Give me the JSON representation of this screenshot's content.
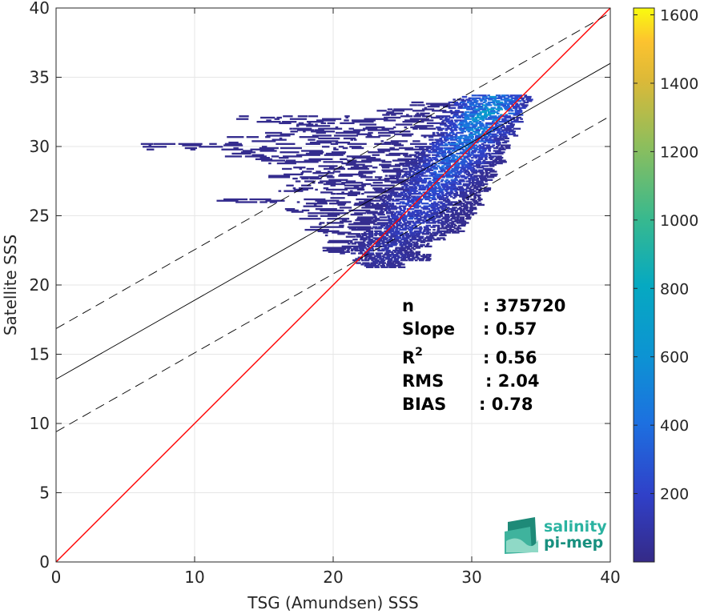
{
  "chart_data": {
    "type": "heatmap",
    "xlabel": "TSG (Amundsen) SSS",
    "ylabel": "Satellite SSS",
    "xlim": [
      0,
      40
    ],
    "ylim": [
      0,
      40
    ],
    "xticks": [
      0,
      10,
      20,
      30,
      40
    ],
    "yticks": [
      0,
      5,
      10,
      15,
      20,
      25,
      30,
      35,
      40
    ],
    "grid": true,
    "colorbar": {
      "range": [
        0,
        1620
      ],
      "ticks": [
        200,
        400,
        600,
        800,
        1000,
        1200,
        1400,
        1600
      ],
      "colormap": "parula"
    },
    "lines": [
      {
        "name": "one-to-one",
        "slope": 1.0,
        "intercept": 0.0,
        "color": "#ff0000",
        "style": "solid"
      },
      {
        "name": "regression",
        "slope": 0.57,
        "intercept": 13.2,
        "color": "#000000",
        "style": "solid"
      },
      {
        "name": "regression-upper",
        "slope": 0.57,
        "intercept": 16.85,
        "color": "#000000",
        "style": "dashed"
      },
      {
        "name": "regression-lower",
        "slope": 0.57,
        "intercept": 9.4,
        "color": "#000000",
        "style": "dashed"
      }
    ],
    "density_rows": [
      {
        "y": 33.5,
        "x": [
          28.5,
          34.0
        ],
        "peak": 31.5,
        "max": 600
      },
      {
        "y": 33.0,
        "x": [
          25.5,
          33.8
        ],
        "peak": 31.0,
        "max": 700
      },
      {
        "y": 32.5,
        "x": [
          23.0,
          33.5
        ],
        "peak": 31.0,
        "max": 800
      },
      {
        "y": 32.0,
        "x": [
          13.0,
          33.5
        ],
        "peak": 30.5,
        "max": 700
      },
      {
        "y": 31.5,
        "x": [
          16.0,
          33.0
        ],
        "peak": 30.0,
        "max": 600
      },
      {
        "y": 31.0,
        "x": [
          15.0,
          33.0
        ],
        "peak": 30.0,
        "max": 600
      },
      {
        "y": 30.5,
        "x": [
          12.0,
          32.5
        ],
        "peak": 29.5,
        "max": 500
      },
      {
        "y": 30.0,
        "x": [
          5.8,
          32.5
        ],
        "peak": 29.0,
        "max": 500
      },
      {
        "y": 29.5,
        "x": [
          12.0,
          32.0
        ],
        "peak": 28.8,
        "max": 450
      },
      {
        "y": 29.0,
        "x": [
          14.0,
          32.0
        ],
        "peak": 28.5,
        "max": 450
      },
      {
        "y": 28.5,
        "x": [
          16.0,
          31.5
        ],
        "peak": 28.0,
        "max": 400
      },
      {
        "y": 28.0,
        "x": [
          15.0,
          31.5
        ],
        "peak": 27.5,
        "max": 400
      },
      {
        "y": 27.5,
        "x": [
          17.0,
          31.0
        ],
        "peak": 27.5,
        "max": 350
      },
      {
        "y": 27.0,
        "x": [
          16.0,
          31.0
        ],
        "peak": 27.0,
        "max": 350
      },
      {
        "y": 26.5,
        "x": [
          17.0,
          30.5
        ],
        "peak": 26.5,
        "max": 300
      },
      {
        "y": 26.0,
        "x": [
          11.0,
          30.5
        ],
        "peak": 26.0,
        "max": 300
      },
      {
        "y": 25.5,
        "x": [
          16.5,
          30.0
        ],
        "peak": 26.0,
        "max": 250
      },
      {
        "y": 25.0,
        "x": [
          17.0,
          30.0
        ],
        "peak": 25.5,
        "max": 250
      },
      {
        "y": 24.5,
        "x": [
          18.0,
          29.5
        ],
        "peak": 25.5,
        "max": 200
      },
      {
        "y": 24.0,
        "x": [
          17.5,
          29.0
        ],
        "peak": 25.0,
        "max": 200
      },
      {
        "y": 23.5,
        "x": [
          19.0,
          28.0
        ],
        "peak": 24.5,
        "max": 150
      },
      {
        "y": 23.0,
        "x": [
          19.5,
          27.0
        ],
        "peak": 24.0,
        "max": 120
      },
      {
        "y": 22.5,
        "x": [
          19.0,
          26.0
        ],
        "peak": 23.0,
        "max": 100
      },
      {
        "y": 22.0,
        "x": [
          21.0,
          27.0
        ],
        "peak": 24.0,
        "max": 80
      },
      {
        "y": 21.5,
        "x": [
          21.5,
          24.8
        ],
        "peak": 22.5,
        "max": 60
      }
    ],
    "annotations": [
      {
        "label": "n",
        "value": ": 375720"
      },
      {
        "label": "Slope",
        "value": ": 0.57"
      },
      {
        "label": "R",
        "sup": "2",
        "value": ": 0.56"
      },
      {
        "label": "RMS",
        "value": ": 2.04"
      },
      {
        "label": "BIAS",
        "value": ": 0.78"
      }
    ]
  },
  "logo": {
    "line1": "salinity",
    "line2": "pi-mep"
  }
}
